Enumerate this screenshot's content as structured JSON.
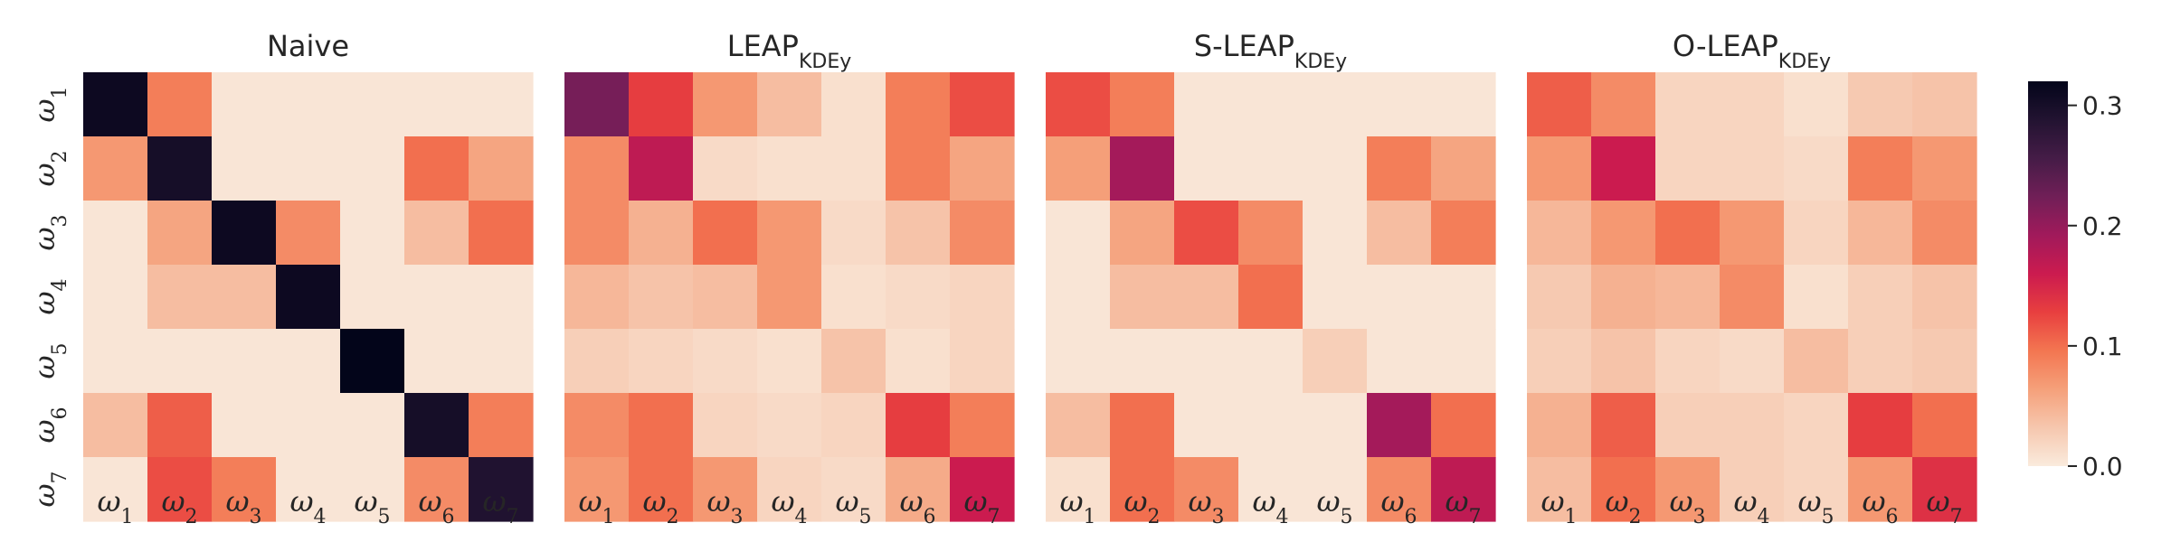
{
  "chart_data": [
    {
      "type": "heatmap",
      "title": "Naive",
      "title_sub": "",
      "x_labels": [
        "ω1",
        "ω2",
        "ω3",
        "ω4",
        "ω5",
        "ω6",
        "ω7"
      ],
      "y_labels": [
        "ω1",
        "ω2",
        "ω3",
        "ω4",
        "ω5",
        "ω6",
        "ω7"
      ],
      "values": [
        [
          0.31,
          0.09,
          0.005,
          0.005,
          0.005,
          0.005,
          0.005
        ],
        [
          0.07,
          0.3,
          0.005,
          0.005,
          0.005,
          0.1,
          0.06
        ],
        [
          0.005,
          0.06,
          0.31,
          0.08,
          0.005,
          0.04,
          0.1
        ],
        [
          0.005,
          0.04,
          0.04,
          0.31,
          0.005,
          0.005,
          0.005
        ],
        [
          0.005,
          0.005,
          0.005,
          0.005,
          0.32,
          0.005,
          0.005
        ],
        [
          0.04,
          0.11,
          0.005,
          0.005,
          0.005,
          0.3,
          0.09
        ],
        [
          0.005,
          0.12,
          0.09,
          0.005,
          0.005,
          0.08,
          0.29
        ]
      ]
    },
    {
      "type": "heatmap",
      "title": "LEAP",
      "title_sub": "KDEy",
      "x_labels": [
        "ω1",
        "ω2",
        "ω3",
        "ω4",
        "ω5",
        "ω6",
        "ω7"
      ],
      "y_labels": [
        "ω1",
        "ω2",
        "ω3",
        "ω4",
        "ω5",
        "ω6",
        "ω7"
      ],
      "values": [
        [
          0.22,
          0.13,
          0.07,
          0.04,
          0.01,
          0.09,
          0.12
        ],
        [
          0.08,
          0.17,
          0.015,
          0.01,
          0.01,
          0.09,
          0.06
        ],
        [
          0.08,
          0.05,
          0.1,
          0.07,
          0.015,
          0.035,
          0.08
        ],
        [
          0.045,
          0.035,
          0.04,
          0.07,
          0.01,
          0.015,
          0.02
        ],
        [
          0.025,
          0.02,
          0.015,
          0.01,
          0.035,
          0.01,
          0.02
        ],
        [
          0.08,
          0.1,
          0.02,
          0.015,
          0.02,
          0.13,
          0.09
        ],
        [
          0.07,
          0.1,
          0.07,
          0.02,
          0.015,
          0.055,
          0.16
        ]
      ]
    },
    {
      "type": "heatmap",
      "title": "S-LEAP",
      "title_sub": "KDEy",
      "x_labels": [
        "ω1",
        "ω2",
        "ω3",
        "ω4",
        "ω5",
        "ω6",
        "ω7"
      ],
      "y_labels": [
        "ω1",
        "ω2",
        "ω3",
        "ω4",
        "ω5",
        "ω6",
        "ω7"
      ],
      "values": [
        [
          0.12,
          0.09,
          0.005,
          0.005,
          0.005,
          0.005,
          0.005
        ],
        [
          0.065,
          0.19,
          0.005,
          0.005,
          0.005,
          0.09,
          0.06
        ],
        [
          0.005,
          0.06,
          0.12,
          0.08,
          0.005,
          0.04,
          0.09
        ],
        [
          0.005,
          0.04,
          0.04,
          0.1,
          0.005,
          0.005,
          0.005
        ],
        [
          0.005,
          0.005,
          0.005,
          0.005,
          0.025,
          0.005,
          0.005
        ],
        [
          0.04,
          0.1,
          0.005,
          0.005,
          0.005,
          0.19,
          0.1
        ],
        [
          0.01,
          0.1,
          0.08,
          0.005,
          0.005,
          0.08,
          0.17
        ]
      ]
    },
    {
      "type": "heatmap",
      "title": "O-LEAP",
      "title_sub": "KDEy",
      "x_labels": [
        "ω1",
        "ω2",
        "ω3",
        "ω4",
        "ω5",
        "ω6",
        "ω7"
      ],
      "y_labels": [
        "ω1",
        "ω2",
        "ω3",
        "ω4",
        "ω5",
        "ω6",
        "ω7"
      ],
      "values": [
        [
          0.11,
          0.08,
          0.02,
          0.02,
          0.01,
          0.03,
          0.035
        ],
        [
          0.07,
          0.16,
          0.02,
          0.02,
          0.015,
          0.09,
          0.07
        ],
        [
          0.045,
          0.07,
          0.1,
          0.07,
          0.02,
          0.045,
          0.08
        ],
        [
          0.03,
          0.05,
          0.045,
          0.08,
          0.01,
          0.025,
          0.035
        ],
        [
          0.025,
          0.035,
          0.02,
          0.015,
          0.04,
          0.025,
          0.03
        ],
        [
          0.05,
          0.11,
          0.025,
          0.025,
          0.02,
          0.13,
          0.1
        ],
        [
          0.04,
          0.1,
          0.07,
          0.025,
          0.02,
          0.07,
          0.14
        ]
      ]
    }
  ],
  "colorbar": {
    "min": 0.0,
    "max": 0.32,
    "ticks": [
      "0.0",
      "0.1",
      "0.2",
      "0.3"
    ],
    "tick_values": [
      0.0,
      0.1,
      0.2,
      0.3
    ],
    "colormap": "rocket_r",
    "stops": [
      "#faebdd",
      "#f6c7ae",
      "#f5a07a",
      "#f37651",
      "#e83f3f",
      "#cb1b4f",
      "#a11a5b",
      "#701f57",
      "#451c47",
      "#221331",
      "#03051a"
    ]
  }
}
